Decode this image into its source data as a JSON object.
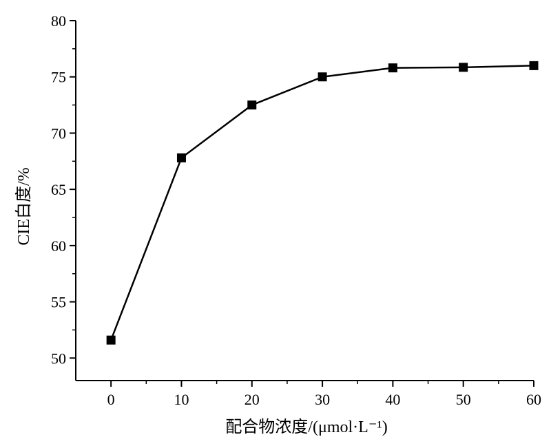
{
  "chart_data": {
    "type": "line",
    "x": [
      0,
      10,
      20,
      30,
      40,
      50,
      60
    ],
    "series": [
      {
        "values": [
          51.6,
          67.8,
          72.5,
          75.0,
          75.8,
          75.85,
          76.0
        ],
        "marker": "square",
        "color": "#000000"
      }
    ],
    "xlabel": "配合物浓度/(μmol·L⁻¹)",
    "ylabel": "CIE白度/%",
    "xlim": [
      -5,
      60
    ],
    "ylim": [
      48,
      80
    ],
    "xticks": [
      "0",
      "10",
      "20",
      "30",
      "40",
      "50",
      "60"
    ],
    "yticks": [
      "50",
      "55",
      "60",
      "65",
      "70",
      "75",
      "80"
    ],
    "grid": false
  }
}
